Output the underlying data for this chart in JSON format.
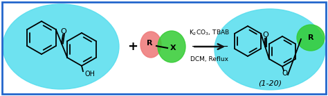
{
  "bg_color": "#ffffff",
  "border_color": "#2266cc",
  "border_linewidth": 2.0,
  "cyan_color": "#55ddee",
  "cyan_alpha": 0.85,
  "green_color": "#33cc33",
  "green_alpha": 0.85,
  "pink_color": "#ee7777",
  "pink_alpha": 0.85,
  "arrow_color": "#111111",
  "reagent_line1": "K$_2$CO$_3$, TBAB",
  "reagent_line2": "DCM, Reflux",
  "plus_text": "+",
  "label_text": "(1-20)",
  "r_text": "R",
  "x_text": "X",
  "o_text": "O",
  "oh_text": "OH"
}
